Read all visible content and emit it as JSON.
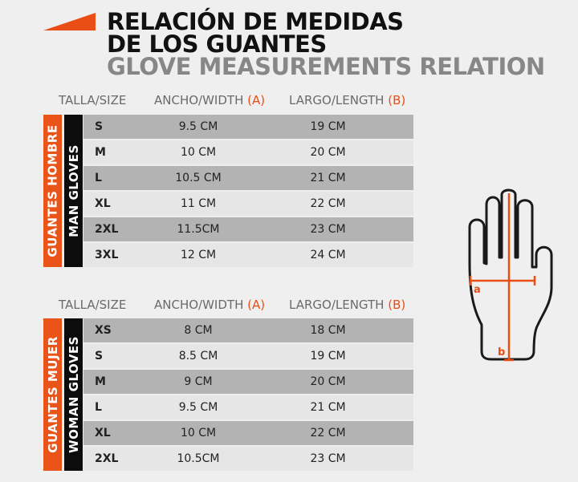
{
  "title": {
    "line1": "RELACIÓN DE MEDIDAS",
    "line2": "DE LOS GUANTES",
    "line3": "GLOVE MEASUREMENTS RELATION"
  },
  "headers": {
    "size": "TALLA/SIZE",
    "width": "ANCHO/WIDTH",
    "width_tag": "(A)",
    "length": "LARGO/LENGTH",
    "length_tag": "(B)"
  },
  "men": {
    "label_es": "GUANTES HOMBRE",
    "label_en": "MAN GLOVES",
    "rows": [
      {
        "size": "S",
        "width": "9.5 CM",
        "length": "19 CM"
      },
      {
        "size": "M",
        "width": "10 CM",
        "length": "20 CM"
      },
      {
        "size": "L",
        "width": "10.5 CM",
        "length": "21 CM"
      },
      {
        "size": "XL",
        "width": "11 CM",
        "length": "22 CM"
      },
      {
        "size": "2XL",
        "width": "11.5CM",
        "length": "23 CM"
      },
      {
        "size": "3XL",
        "width": "12 CM",
        "length": "24 CM"
      }
    ]
  },
  "women": {
    "label_es": "GUANTES MUJER",
    "label_en": "WOMAN GLOVES",
    "rows": [
      {
        "size": "XS",
        "width": "8 CM",
        "length": "18 CM"
      },
      {
        "size": "S",
        "width": "8.5 CM",
        "length": "19 CM"
      },
      {
        "size": "M",
        "width": "9 CM",
        "length": "20 CM"
      },
      {
        "size": "L",
        "width": "9.5 CM",
        "length": "21 CM"
      },
      {
        "size": "XL",
        "width": "10 CM",
        "length": "22 CM"
      },
      {
        "size": "2XL",
        "width": "10.5CM",
        "length": "23 CM"
      }
    ]
  },
  "diagram": {
    "a": "a",
    "b": "b"
  },
  "colors": {
    "accent": "#ea4e14",
    "title": "#111111",
    "subtitle": "#878787"
  }
}
